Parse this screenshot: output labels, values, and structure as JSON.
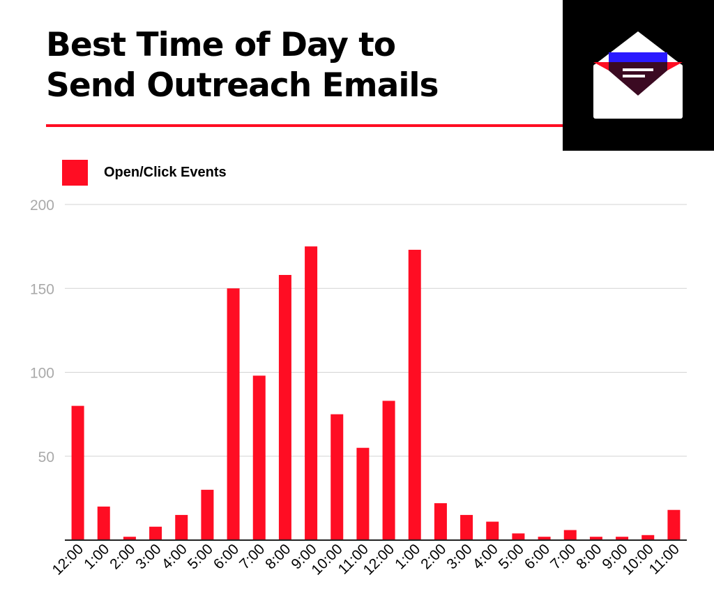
{
  "header": {
    "title_line1": "Best Time of Day to",
    "title_line2": "Send Outreach Emails",
    "accent_color": "#ff0d23"
  },
  "logo": {
    "icon": "open-envelope-icon",
    "colors": {
      "box": "#000000",
      "envelope": "#ffffff",
      "flap": "#ff0d23",
      "letter": "#3b0a22",
      "band": "#2a1aff"
    }
  },
  "legend": {
    "label": "Open/Click Events",
    "placement": "top-left",
    "color": "#ff0d23"
  },
  "chart_data": {
    "type": "bar",
    "title": "Best Time of Day to Send Outreach Emails",
    "xlabel": "",
    "ylabel": "",
    "ylim": [
      0,
      200
    ],
    "yticks": [
      50,
      100,
      150,
      200
    ],
    "grid": true,
    "categories": [
      "12:00",
      "1:00",
      "2:00",
      "3:00",
      "4:00",
      "5:00",
      "6:00",
      "7:00",
      "8:00",
      "9:00",
      "10:00",
      "11:00",
      "12:00",
      "1:00",
      "2:00",
      "3:00",
      "4:00",
      "5:00",
      "6:00",
      "7:00",
      "8:00",
      "9:00",
      "10:00",
      "11:00"
    ],
    "series": [
      {
        "name": "Open/Click Events",
        "color": "#ff0d23",
        "values": [
          80,
          20,
          2,
          8,
          15,
          30,
          150,
          98,
          158,
          175,
          75,
          55,
          83,
          173,
          22,
          15,
          11,
          4,
          2,
          6,
          2,
          2,
          3,
          18
        ]
      }
    ]
  }
}
